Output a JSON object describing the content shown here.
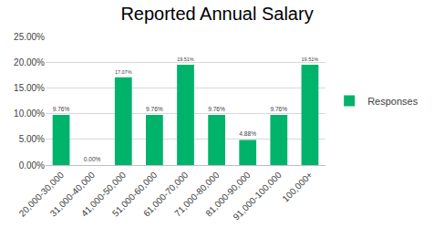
{
  "chart_data": {
    "type": "bar",
    "title": "Reported Annual Salary",
    "categories": [
      "20,000-30,000",
      "31,000-40,000",
      "41,000-50,000",
      "51,000-60,000",
      "61,000-70,000",
      "71,000-80,000",
      "81,000-90,000",
      "91,000-100,000",
      "100,000+"
    ],
    "series": [
      {
        "name": "Responses",
        "color": "#00b36b",
        "values": [
          9.76,
          0,
          17.07,
          9.76,
          19.51,
          9.76,
          4.88,
          9.76,
          19.51
        ],
        "value_labels": [
          "9.76%",
          "0.00%",
          "17.07%",
          "9.76%",
          "19.51%",
          "9.76%",
          "4.88%",
          "9.76%",
          "19.51%"
        ]
      }
    ],
    "ylim": [
      0,
      25
    ],
    "yticks": [
      {
        "value": 0,
        "label": "0.00%"
      },
      {
        "value": 5,
        "label": "5.00%"
      },
      {
        "value": 10,
        "label": "10.00%"
      },
      {
        "value": 15,
        "label": "15.00%"
      },
      {
        "value": 20,
        "label": "20.00%"
      },
      {
        "value": 25,
        "label": "25.00%"
      }
    ],
    "grid": true,
    "legend": "right",
    "data_labels": true
  }
}
